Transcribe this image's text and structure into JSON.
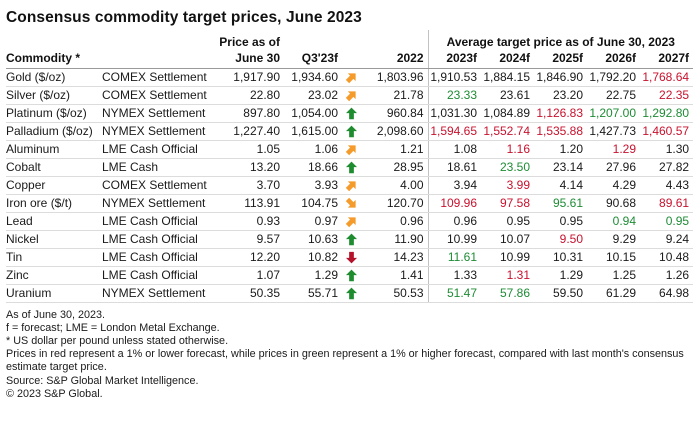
{
  "title": "Consensus commodity target prices, June 2023",
  "colors": {
    "arrow_orange": "#F59B2C",
    "arrow_green": "#1E8C2F",
    "arrow_red": "#B5122B",
    "text_red": "#C8122E",
    "text_green": "#1E8C35",
    "gridline": "#DCDCDC",
    "header_rule": "#9A9A9A"
  },
  "chart_data": {
    "type": "table",
    "title": "Consensus commodity target prices, June 2023",
    "headers": {
      "commodity": "Commodity *",
      "price_line1": "Price as of",
      "price_line2": "June 30",
      "q3": "Q3'23f",
      "y2022": "2022",
      "avg_group": "Average target price as of June 30, 2023",
      "forecast_years": [
        "2023f",
        "2024f",
        "2025f",
        "2026f",
        "2027f"
      ]
    },
    "rows": [
      {
        "commodity": "Gold ($/oz)",
        "exchange": "COMEX Settlement",
        "price_jun30": "1,917.90",
        "q3_23f": "1,934.60",
        "trend": "orange-ne",
        "y2022": "1,803.96",
        "targets": [
          {
            "v": "1,910.53",
            "c": ""
          },
          {
            "v": "1,884.15",
            "c": ""
          },
          {
            "v": "1,846.90",
            "c": ""
          },
          {
            "v": "1,792.20",
            "c": ""
          },
          {
            "v": "1,768.64",
            "c": "r"
          }
        ]
      },
      {
        "commodity": "Silver ($/oz)",
        "exchange": "COMEX Settlement",
        "price_jun30": "22.80",
        "q3_23f": "23.02",
        "trend": "orange-ne",
        "y2022": "21.78",
        "targets": [
          {
            "v": "23.33",
            "c": "g"
          },
          {
            "v": "23.61",
            "c": ""
          },
          {
            "v": "23.20",
            "c": ""
          },
          {
            "v": "22.75",
            "c": ""
          },
          {
            "v": "22.35",
            "c": "r"
          }
        ]
      },
      {
        "commodity": "Platinum ($/oz)",
        "exchange": "NYMEX Settlement",
        "price_jun30": "897.80",
        "q3_23f": "1,054.00",
        "trend": "green-up",
        "y2022": "960.84",
        "targets": [
          {
            "v": "1,031.30",
            "c": ""
          },
          {
            "v": "1,084.89",
            "c": ""
          },
          {
            "v": "1,126.83",
            "c": "r"
          },
          {
            "v": "1,207.00",
            "c": "g"
          },
          {
            "v": "1,292.80",
            "c": "g"
          }
        ]
      },
      {
        "commodity": "Palladium ($/oz)",
        "exchange": "NYMEX Settlement",
        "price_jun30": "1,227.40",
        "q3_23f": "1,615.00",
        "trend": "green-up",
        "y2022": "2,098.60",
        "targets": [
          {
            "v": "1,594.65",
            "c": "r"
          },
          {
            "v": "1,552.74",
            "c": "r"
          },
          {
            "v": "1,535.88",
            "c": "r"
          },
          {
            "v": "1,427.73",
            "c": ""
          },
          {
            "v": "1,460.57",
            "c": "r"
          }
        ]
      },
      {
        "commodity": "Aluminum",
        "exchange": "LME Cash Official",
        "price_jun30": "1.05",
        "q3_23f": "1.06",
        "trend": "orange-ne",
        "y2022": "1.21",
        "targets": [
          {
            "v": "1.08",
            "c": ""
          },
          {
            "v": "1.16",
            "c": "r"
          },
          {
            "v": "1.20",
            "c": ""
          },
          {
            "v": "1.29",
            "c": "r"
          },
          {
            "v": "1.30",
            "c": ""
          }
        ]
      },
      {
        "commodity": "Cobalt",
        "exchange": "LME Cash",
        "price_jun30": "13.20",
        "q3_23f": "18.66",
        "trend": "green-up",
        "y2022": "28.95",
        "targets": [
          {
            "v": "18.61",
            "c": ""
          },
          {
            "v": "23.50",
            "c": "g"
          },
          {
            "v": "23.14",
            "c": ""
          },
          {
            "v": "27.96",
            "c": ""
          },
          {
            "v": "27.82",
            "c": ""
          }
        ]
      },
      {
        "commodity": "Copper",
        "exchange": "COMEX Settlement",
        "price_jun30": "3.70",
        "q3_23f": "3.93",
        "trend": "orange-ne",
        "y2022": "4.00",
        "targets": [
          {
            "v": "3.94",
            "c": ""
          },
          {
            "v": "3.99",
            "c": "r"
          },
          {
            "v": "4.14",
            "c": ""
          },
          {
            "v": "4.29",
            "c": ""
          },
          {
            "v": "4.43",
            "c": ""
          }
        ]
      },
      {
        "commodity": "Iron ore ($/t)",
        "exchange": "NYMEX Settlement",
        "price_jun30": "113.91",
        "q3_23f": "104.75",
        "trend": "orange-se",
        "y2022": "120.70",
        "targets": [
          {
            "v": "109.96",
            "c": "r"
          },
          {
            "v": "97.58",
            "c": "r"
          },
          {
            "v": "95.61",
            "c": "g"
          },
          {
            "v": "90.68",
            "c": ""
          },
          {
            "v": "89.61",
            "c": "r"
          }
        ]
      },
      {
        "commodity": "Lead",
        "exchange": "LME Cash Official",
        "price_jun30": "0.93",
        "q3_23f": "0.97",
        "trend": "orange-ne",
        "y2022": "0.96",
        "targets": [
          {
            "v": "0.96",
            "c": ""
          },
          {
            "v": "0.95",
            "c": ""
          },
          {
            "v": "0.95",
            "c": ""
          },
          {
            "v": "0.94",
            "c": "g"
          },
          {
            "v": "0.95",
            "c": "g"
          }
        ]
      },
      {
        "commodity": "Nickel",
        "exchange": "LME Cash Official",
        "price_jun30": "9.57",
        "q3_23f": "10.63",
        "trend": "green-up",
        "y2022": "11.90",
        "targets": [
          {
            "v": "10.99",
            "c": ""
          },
          {
            "v": "10.07",
            "c": ""
          },
          {
            "v": "9.50",
            "c": "r"
          },
          {
            "v": "9.29",
            "c": ""
          },
          {
            "v": "9.24",
            "c": ""
          }
        ]
      },
      {
        "commodity": "Tin",
        "exchange": "LME Cash Official",
        "price_jun30": "12.20",
        "q3_23f": "10.82",
        "trend": "red-down",
        "y2022": "14.23",
        "targets": [
          {
            "v": "11.61",
            "c": "g"
          },
          {
            "v": "10.99",
            "c": ""
          },
          {
            "v": "10.31",
            "c": ""
          },
          {
            "v": "10.15",
            "c": ""
          },
          {
            "v": "10.48",
            "c": ""
          }
        ]
      },
      {
        "commodity": "Zinc",
        "exchange": "LME Cash Official",
        "price_jun30": "1.07",
        "q3_23f": "1.29",
        "trend": "green-up",
        "y2022": "1.41",
        "targets": [
          {
            "v": "1.33",
            "c": ""
          },
          {
            "v": "1.31",
            "c": "r"
          },
          {
            "v": "1.29",
            "c": ""
          },
          {
            "v": "1.25",
            "c": ""
          },
          {
            "v": "1.26",
            "c": ""
          }
        ]
      },
      {
        "commodity": "Uranium",
        "exchange": "NYMEX Settlement",
        "price_jun30": "50.35",
        "q3_23f": "55.71",
        "trend": "green-up",
        "y2022": "50.53",
        "targets": [
          {
            "v": "51.47",
            "c": "g"
          },
          {
            "v": "57.86",
            "c": "g"
          },
          {
            "v": "59.50",
            "c": ""
          },
          {
            "v": "61.29",
            "c": ""
          },
          {
            "v": "64.98",
            "c": ""
          }
        ]
      }
    ]
  },
  "footnotes": [
    "As of June 30, 2023.",
    "f = forecast; LME = London Metal Exchange.",
    "* US dollar per pound unless stated otherwise.",
    "Prices in red represent a 1% or lower forecast, while prices in green represent a 1% or higher forecast, compared with last month's consensus estimate target price.",
    "Source: S&P Global Market Intelligence.",
    "© 2023 S&P Global."
  ]
}
